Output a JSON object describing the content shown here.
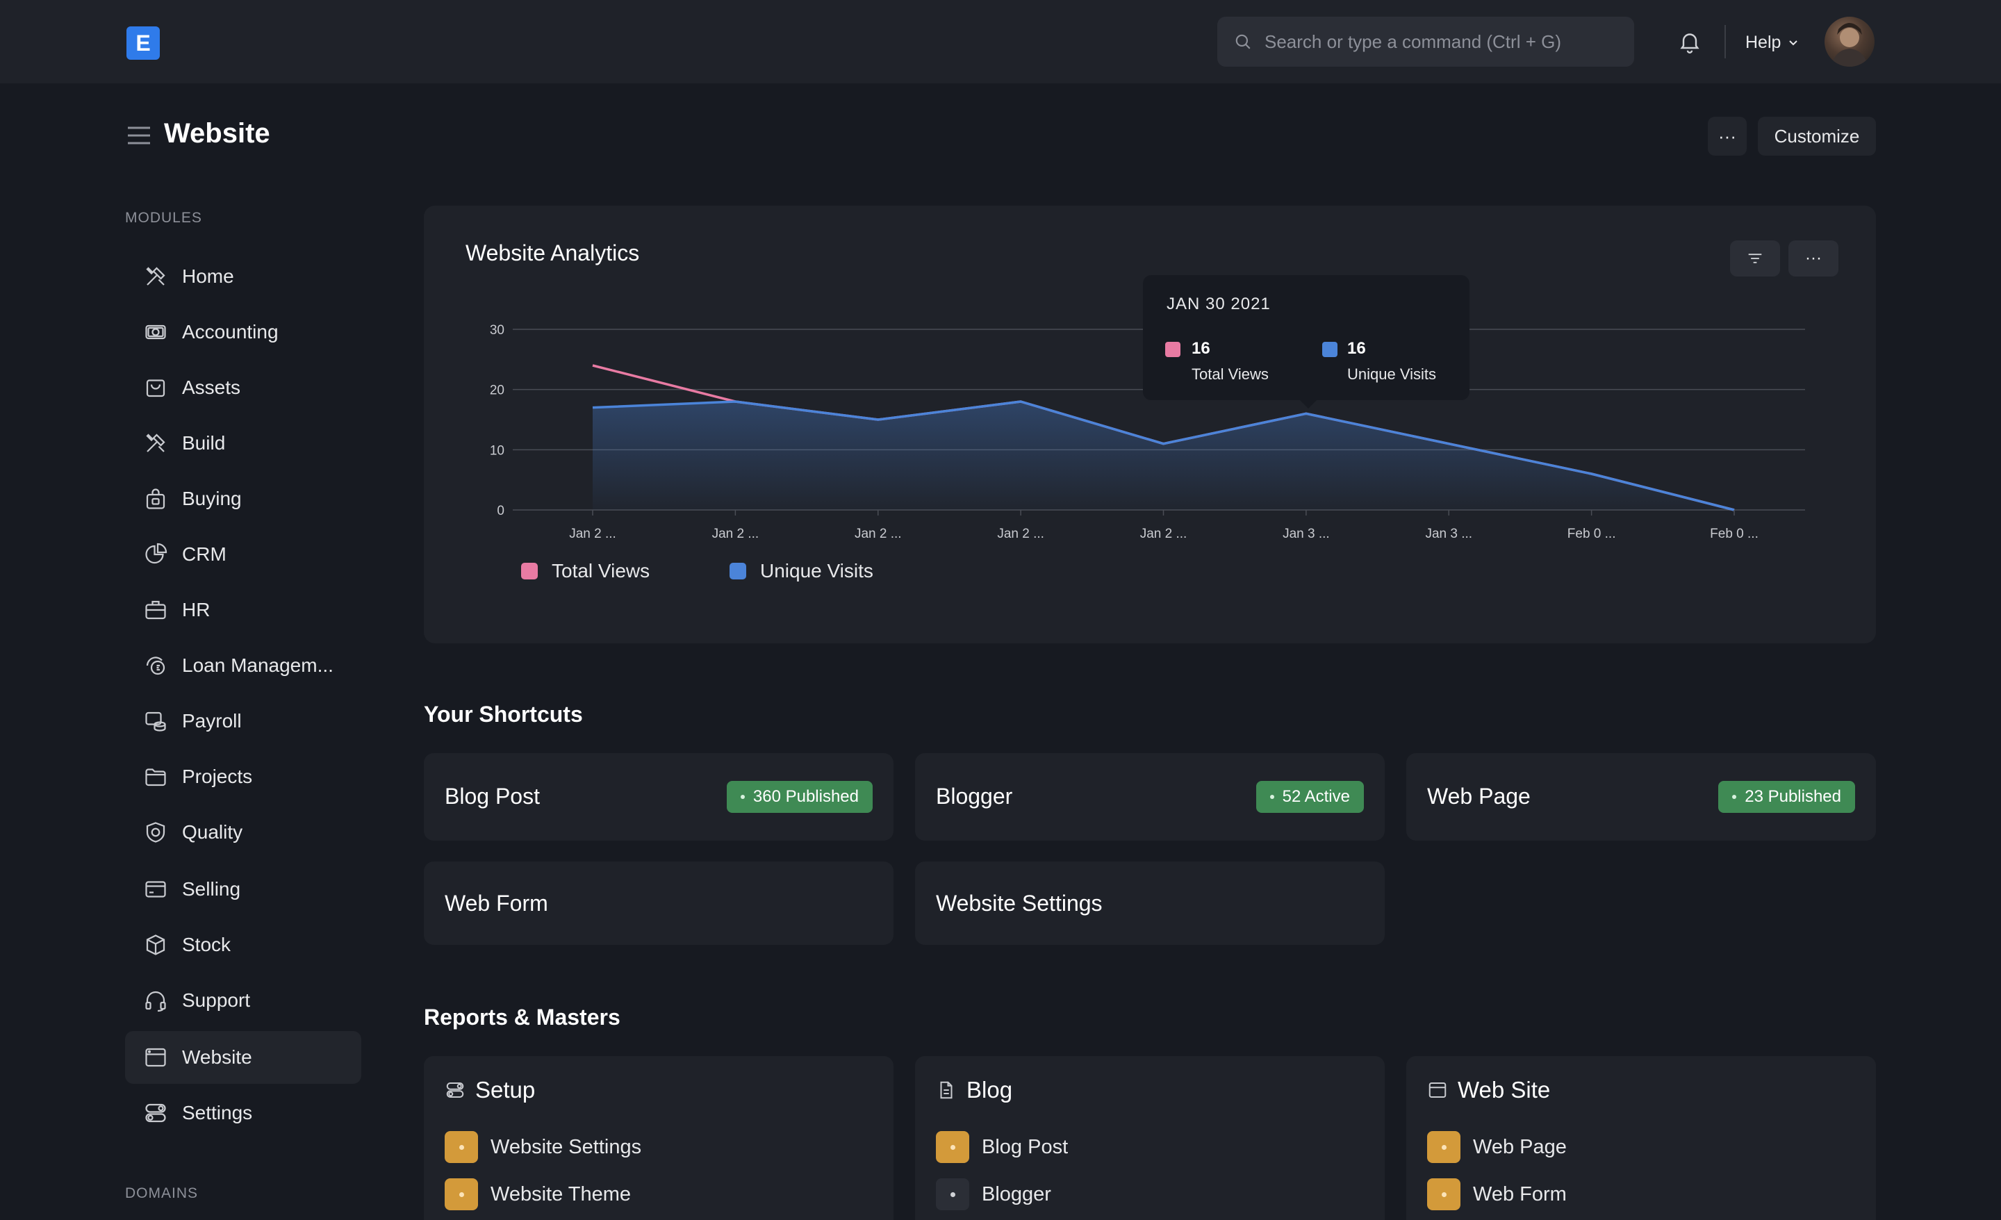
{
  "navbar": {
    "logo_letter": "E",
    "search_placeholder": "Search or type a command (Ctrl + G)",
    "help_label": "Help"
  },
  "page": {
    "title": "Website",
    "more_label": "···",
    "customize_label": "Customize"
  },
  "sidebar": {
    "modules_label": "MODULES",
    "domains_label": "DOMAINS",
    "items": [
      {
        "label": "Home",
        "icon": "tools-icon"
      },
      {
        "label": "Accounting",
        "icon": "money-icon"
      },
      {
        "label": "Assets",
        "icon": "bag-icon"
      },
      {
        "label": "Build",
        "icon": "tools-icon"
      },
      {
        "label": "Buying",
        "icon": "shop-bag-icon"
      },
      {
        "label": "CRM",
        "icon": "pie-icon"
      },
      {
        "label": "HR",
        "icon": "briefcase-icon"
      },
      {
        "label": "Loan Managem...",
        "icon": "loan-icon"
      },
      {
        "label": "Payroll",
        "icon": "coins-icon"
      },
      {
        "label": "Projects",
        "icon": "folder-icon"
      },
      {
        "label": "Quality",
        "icon": "shield-icon"
      },
      {
        "label": "Selling",
        "icon": "card-icon"
      },
      {
        "label": "Stock",
        "icon": "box-icon"
      },
      {
        "label": "Support",
        "icon": "headset-icon"
      },
      {
        "label": "Website",
        "icon": "browser-icon",
        "active": true
      },
      {
        "label": "Settings",
        "icon": "toggle-icon"
      }
    ]
  },
  "analytics": {
    "title": "Website Analytics",
    "filter_icon": "filter-icon",
    "more_label": "···",
    "tooltip": {
      "date": "JAN 30 2021",
      "total_value": "16",
      "total_label": "Total Views",
      "unique_value": "16",
      "unique_label": "Unique Visits"
    }
  },
  "chart_data": {
    "type": "line",
    "title": "Website Analytics",
    "categories": [
      "Jan 2 ...",
      "Jan 2 ...",
      "Jan 2 ...",
      "Jan 2 ...",
      "Jan 2 ...",
      "Jan 3 ...",
      "Jan 3 ...",
      "Feb 0 ...",
      "Feb 0 ..."
    ],
    "yticks": [
      0,
      10,
      20,
      30
    ],
    "ylim": [
      0,
      30
    ],
    "grid": true,
    "legend": "bottom-left",
    "series": [
      {
        "name": "Total Views",
        "color": "#e87ba3",
        "values": [
          24,
          18,
          15,
          18,
          11,
          16,
          11,
          6,
          0
        ]
      },
      {
        "name": "Unique Visits",
        "color": "#4b84d9",
        "values": [
          17,
          18,
          15,
          18,
          11,
          16,
          11,
          6,
          0
        ],
        "area": true
      }
    ]
  },
  "shortcuts": {
    "heading": "Your Shortcuts",
    "items": [
      {
        "label": "Blog Post",
        "badge": "360 Published",
        "badge_color": "#3f8a54"
      },
      {
        "label": "Blogger",
        "badge": "52 Active",
        "badge_color": "#3f8a54"
      },
      {
        "label": "Web Page",
        "badge": "23 Published",
        "badge_color": "#3f8a54"
      },
      {
        "label": "Web Form"
      },
      {
        "label": "Website Settings"
      }
    ]
  },
  "reports": {
    "heading": "Reports & Masters",
    "cards": [
      {
        "title": "Setup",
        "icon": "toggle-icon",
        "links": [
          {
            "label": "Website Settings",
            "style": "orange"
          },
          {
            "label": "Website Theme",
            "style": "orange"
          }
        ]
      },
      {
        "title": "Blog",
        "icon": "document-icon",
        "links": [
          {
            "label": "Blog Post",
            "style": "orange"
          },
          {
            "label": "Blogger",
            "style": "dark"
          }
        ]
      },
      {
        "title": "Web Site",
        "icon": "browser-icon",
        "links": [
          {
            "label": "Web Page",
            "style": "orange"
          },
          {
            "label": "Web Form",
            "style": "orange"
          }
        ]
      }
    ]
  }
}
